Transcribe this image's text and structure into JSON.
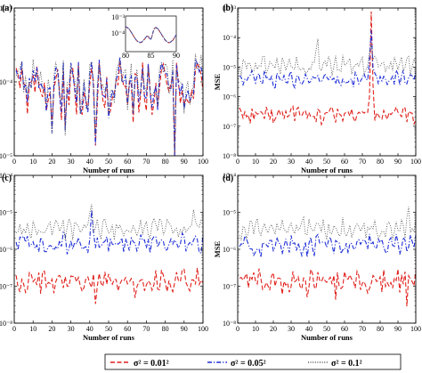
{
  "figure": {
    "xlabel": "Number of runs",
    "ylabel": "MSE",
    "legend": [
      {
        "label": "σ² = 0.01²",
        "color": "#e0201b",
        "dash": "dash"
      },
      {
        "label": "σ² = 0.05²",
        "color": "#1f2fd6",
        "dash": "dashdot"
      },
      {
        "label": "σ² = 0.1²",
        "color": "#555555",
        "dash": "dot"
      }
    ]
  },
  "chart_data": [
    {
      "panel": "(a)",
      "type": "line",
      "xlabel": "Number of runs",
      "ylabel": "MSE",
      "xlim": [
        0,
        100
      ],
      "ylim": [
        1e-05,
        0.001
      ],
      "yscale": "log",
      "xticks": [
        "0",
        "10",
        "20",
        "30",
        "40",
        "50",
        "60",
        "70",
        "80",
        "90",
        "100"
      ],
      "yticks": [
        "10⁻⁵",
        "10⁻⁴",
        "10⁻³"
      ],
      "base_exp": -4.05,
      "series": [
        {
          "name": "σ² = 0.01²",
          "color": "#e0201b",
          "dash": "dash",
          "amp": 0.33,
          "dips": [
            [
              20,
              -0.55
            ],
            [
              27,
              -0.35
            ],
            [
              43,
              -0.4
            ],
            [
              60,
              -0.45
            ],
            [
              63,
              -0.55
            ],
            [
              73,
              -0.5
            ],
            [
              85,
              -0.8
            ]
          ],
          "spikes": []
        },
        {
          "name": "σ² = 0.05²",
          "color": "#1f2fd6",
          "dash": "dashdot",
          "amp": 0.33,
          "dips": [
            [
              20,
              -0.55
            ],
            [
              27,
              -0.35
            ],
            [
              43,
              -0.4
            ],
            [
              60,
              -0.45
            ],
            [
              63,
              -0.55
            ],
            [
              73,
              -0.5
            ],
            [
              85,
              -0.8
            ]
          ],
          "spikes": []
        },
        {
          "name": "σ² = 0.1²",
          "color": "#555555",
          "dash": "dot",
          "amp": 0.33,
          "dips": [
            [
              20,
              -0.55
            ],
            [
              27,
              -0.35
            ],
            [
              43,
              -0.4
            ],
            [
              60,
              -0.45
            ],
            [
              63,
              -0.55
            ],
            [
              73,
              -0.5
            ],
            [
              85,
              -0.8
            ]
          ],
          "spikes": []
        }
      ],
      "inset": {
        "xlim": [
          80,
          90
        ],
        "xticks": [
          "80",
          "85",
          "90"
        ],
        "yticks": [
          "10⁻⁴",
          "10⁻³"
        ]
      }
    },
    {
      "panel": "(b)",
      "type": "line",
      "xlabel": "Number of runs",
      "ylabel": "MSE",
      "xlim": [
        0,
        100
      ],
      "ylim": [
        1e-08,
        0.001
      ],
      "yscale": "log",
      "xticks": [
        "0",
        "10",
        "20",
        "30",
        "40",
        "50",
        "60",
        "70",
        "80",
        "90",
        "100"
      ],
      "yticks": [
        "10⁻⁸",
        "10⁻⁷",
        "10⁻⁶",
        "10⁻⁵",
        "10⁻⁴",
        "10⁻³"
      ],
      "series": [
        {
          "name": "σ² = 0.01²",
          "color": "#e0201b",
          "dash": "dash",
          "base_exp": -6.6,
          "amp": 0.25,
          "dips": [
            [
              20,
              -0.4
            ],
            [
              55,
              -0.3
            ]
          ],
          "spikes": [
            [
              75,
              3.2
            ]
          ]
        },
        {
          "name": "σ² = 0.05²",
          "color": "#1f2fd6",
          "dash": "dashdot",
          "base_exp": -5.4,
          "amp": 0.22,
          "dips": [
            [
              21,
              -0.3
            ]
          ],
          "spikes": [
            [
              75,
              1.5
            ]
          ]
        },
        {
          "name": "σ² = 0.1²",
          "color": "#555555",
          "dash": "dot",
          "base_exp": -4.95,
          "amp": 0.25,
          "dips": [],
          "spikes": [
            [
              45,
              0.7
            ],
            [
              75,
              1.0
            ]
          ]
        }
      ]
    },
    {
      "panel": "(c)",
      "type": "line",
      "xlabel": "Number of runs",
      "ylabel": "MSE",
      "xlim": [
        0,
        100
      ],
      "ylim": [
        1e-08,
        0.0001
      ],
      "yscale": "log",
      "xticks": [
        "0",
        "10",
        "20",
        "30",
        "40",
        "50",
        "60",
        "70",
        "80",
        "90",
        "100"
      ],
      "yticks": [
        "10⁻⁸",
        "10⁻⁷",
        "10⁻⁶",
        "10⁻⁵",
        "10⁻⁴"
      ],
      "series": [
        {
          "name": "σ² = 0.01²",
          "color": "#e0201b",
          "dash": "dash",
          "base_exp": -6.85,
          "amp": 0.25,
          "dips": [
            [
              43,
              -0.55
            ],
            [
              64,
              -0.4
            ],
            [
              93,
              -0.4
            ]
          ],
          "spikes": []
        },
        {
          "name": "σ² = 0.05²",
          "color": "#1f2fd6",
          "dash": "dashdot",
          "base_exp": -5.85,
          "amp": 0.22,
          "dips": [
            [
              50,
              -0.3
            ]
          ],
          "spikes": [
            [
              41,
              0.6
            ]
          ]
        },
        {
          "name": "σ² = 0.1²",
          "color": "#555555",
          "dash": "dot",
          "base_exp": -5.45,
          "amp": 0.22,
          "dips": [],
          "spikes": [
            [
              41,
              0.55
            ],
            [
              95,
              0.55
            ]
          ]
        }
      ]
    },
    {
      "panel": "(d)",
      "type": "line",
      "xlabel": "Number of runs",
      "ylabel": "MSE",
      "xlim": [
        0,
        100
      ],
      "ylim": [
        1e-08,
        0.0001
      ],
      "yscale": "log",
      "xticks": [
        "0",
        "10",
        "20",
        "30",
        "40",
        "50",
        "60",
        "70",
        "80",
        "90",
        "100"
      ],
      "yticks": [
        "10⁻⁸",
        "10⁻⁷",
        "10⁻⁶",
        "10⁻⁵",
        "10⁻⁴"
      ],
      "series": [
        {
          "name": "σ² = 0.01²",
          "color": "#e0201b",
          "dash": "dash",
          "base_exp": -6.85,
          "amp": 0.25,
          "dips": [
            [
              39,
              -0.55
            ],
            [
              55,
              -0.45
            ],
            [
              95,
              -0.45
            ]
          ],
          "spikes": []
        },
        {
          "name": "σ² = 0.05²",
          "color": "#1f2fd6",
          "dash": "dashdot",
          "base_exp": -5.9,
          "amp": 0.22,
          "dips": [],
          "spikes": []
        },
        {
          "name": "σ² = 0.1²",
          "color": "#555555",
          "dash": "dot",
          "base_exp": -5.45,
          "amp": 0.22,
          "dips": [],
          "spikes": [
            [
              96,
              0.5
            ]
          ]
        }
      ]
    }
  ]
}
